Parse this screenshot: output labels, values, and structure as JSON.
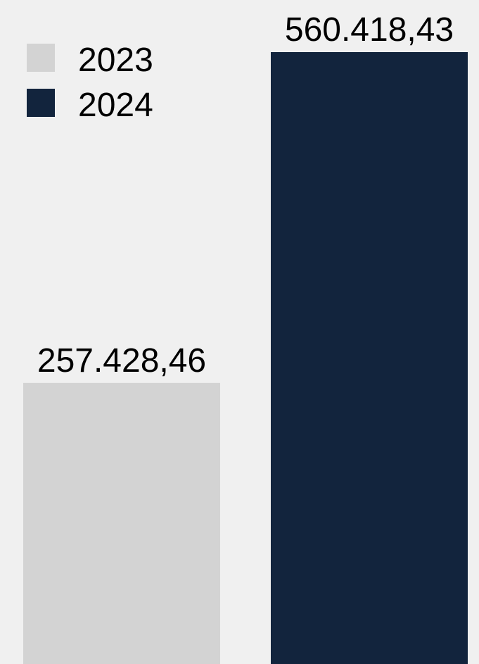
{
  "chart_data": {
    "type": "bar",
    "categories": [
      null
    ],
    "series": [
      {
        "name": "2023",
        "color": "#d3d3d3",
        "values": [
          257428.46
        ],
        "value_labels": [
          "257.428,46"
        ]
      },
      {
        "name": "2024",
        "color": "#12243d",
        "values": [
          560418.43
        ],
        "value_labels": [
          "560.418,43"
        ]
      }
    ],
    "legend": "upper left"
  }
}
